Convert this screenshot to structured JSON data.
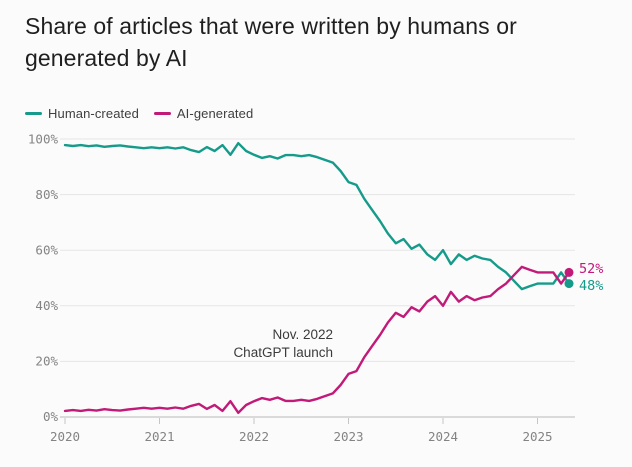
{
  "title": "Share of articles that were written by humans or generated by AI",
  "legend": {
    "items": [
      {
        "label": "Human-created",
        "color": "#169b8a"
      },
      {
        "label": "AI-generated",
        "color": "#c11a78"
      }
    ]
  },
  "annotation": {
    "line1": "Nov. 2022",
    "line2": "ChatGPT launch"
  },
  "chart_data": {
    "type": "line",
    "x_start": "2020-01",
    "x_end": "2025-05",
    "x_interval": "monthly",
    "x_ticks": [
      "2020",
      "2021",
      "2022",
      "2023",
      "2024",
      "2025"
    ],
    "y_ticks": [
      "100%",
      "80%",
      "60%",
      "40%",
      "20%",
      "0%"
    ],
    "ylim": [
      0,
      100
    ],
    "grid": "horizontal",
    "legend_position": "top-left",
    "xlabel": "",
    "ylabel": "",
    "series": [
      {
        "name": "Human-created",
        "color": "#169b8a",
        "end_label": "48%",
        "end_value": 48,
        "values": [
          97.8,
          97.5,
          97.8,
          97.4,
          97.7,
          97.2,
          97.5,
          97.7,
          97.3,
          97.0,
          96.7,
          97.0,
          96.7,
          97.0,
          96.6,
          97.0,
          96.0,
          95.3,
          97.1,
          95.7,
          97.8,
          94.3,
          98.5,
          95.7,
          94.3,
          93.2,
          93.8,
          93.0,
          94.2,
          94.2,
          93.8,
          94.2,
          93.5,
          92.5,
          91.5,
          88.5,
          84.5,
          83.5,
          78.5,
          74.5,
          70.5,
          66.0,
          62.5,
          64.0,
          60.5,
          62.0,
          58.5,
          56.5,
          60.0,
          55.0,
          58.5,
          56.5,
          58.0,
          57.0,
          56.5,
          54.0,
          52.0,
          49.0,
          46.0,
          47.0,
          48.0,
          48.0,
          48.0,
          52.0,
          48.0
        ]
      },
      {
        "name": "AI-generated",
        "color": "#c11a78",
        "end_label": "52%",
        "end_value": 52,
        "values": [
          2.2,
          2.5,
          2.2,
          2.6,
          2.3,
          2.8,
          2.5,
          2.3,
          2.7,
          3.0,
          3.3,
          3.0,
          3.3,
          3.0,
          3.4,
          3.0,
          4.0,
          4.7,
          2.9,
          4.3,
          2.2,
          5.7,
          1.5,
          4.3,
          5.7,
          6.8,
          6.2,
          7.0,
          5.8,
          5.8,
          6.2,
          5.8,
          6.5,
          7.5,
          8.5,
          11.5,
          15.5,
          16.5,
          21.5,
          25.5,
          29.5,
          34.0,
          37.5,
          36.0,
          39.5,
          38.0,
          41.5,
          43.5,
          40.0,
          45.0,
          41.5,
          43.5,
          42.0,
          43.0,
          43.5,
          46.0,
          48.0,
          51.0,
          54.0,
          53.0,
          52.0,
          52.0,
          52.0,
          48.0,
          52.0
        ]
      }
    ],
    "annotations": [
      {
        "text": "Nov. 2022 ChatGPT launch",
        "x": "2022-11"
      }
    ]
  }
}
